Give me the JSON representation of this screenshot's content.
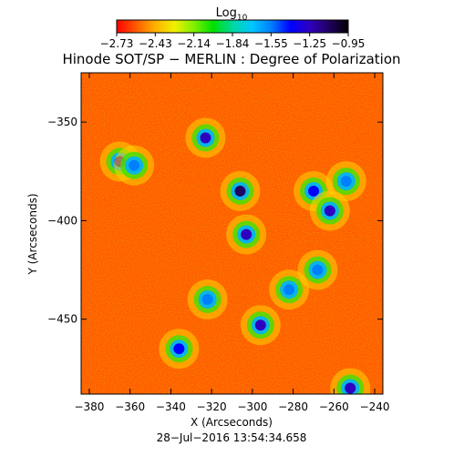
{
  "colorbar": {
    "label_main": "Log",
    "label_sub": "10",
    "ticks": [
      "−2.73",
      "−2.43",
      "−2.14",
      "−1.84",
      "−1.55",
      "−1.25",
      "−0.95"
    ],
    "colors": [
      "#ff0000",
      "#ff5a00",
      "#ffb000",
      "#f0f000",
      "#80f000",
      "#00e000",
      "#00d8a0",
      "#00c8ff",
      "#0080ff",
      "#0000ff",
      "#3000c0",
      "#200060",
      "#000000"
    ]
  },
  "chart_data": {
    "type": "heatmap",
    "title": "Hinode SOT/SP − MERLIN : Degree of Polarization",
    "xlabel": "X (Arcseconds)",
    "ylabel": "Y (Arcseconds)",
    "xlim": [
      -384,
      -236
    ],
    "ylim": [
      -488,
      -325
    ],
    "xticks": [
      -380,
      -360,
      -340,
      -320,
      -300,
      -280,
      -260,
      -240
    ],
    "xticklabels": [
      "−380",
      "−360",
      "−340",
      "−320",
      "−300",
      "−280",
      "−260",
      "−240"
    ],
    "yticks": [
      -350,
      -400,
      -450
    ],
    "yticklabels": [
      "−350",
      "−400",
      "−450"
    ],
    "value_range": [
      -2.73,
      -0.95
    ],
    "value_label": "Log10 Degree of Polarization",
    "high_polarization_regions": [
      {
        "x": -365,
        "y": -370,
        "value": -1.3
      },
      {
        "x": -358,
        "y": -372,
        "value": -1.6
      },
      {
        "x": -323,
        "y": -358,
        "value": -1.3
      },
      {
        "x": -306,
        "y": -385,
        "value": -1.1
      },
      {
        "x": -303,
        "y": -407,
        "value": -1.2
      },
      {
        "x": -270,
        "y": -385,
        "value": -1.4
      },
      {
        "x": -262,
        "y": -395,
        "value": -1.3
      },
      {
        "x": -254,
        "y": -380,
        "value": -1.5
      },
      {
        "x": -322,
        "y": -440,
        "value": -1.5
      },
      {
        "x": -296,
        "y": -453,
        "value": -1.3
      },
      {
        "x": -282,
        "y": -435,
        "value": -1.5
      },
      {
        "x": -268,
        "y": -425,
        "value": -1.5
      },
      {
        "x": -252,
        "y": -485,
        "value": -1.3
      },
      {
        "x": -336,
        "y": -465,
        "value": -1.4
      }
    ]
  },
  "timestamp": "28−Jul−2016 13:54:34.658"
}
